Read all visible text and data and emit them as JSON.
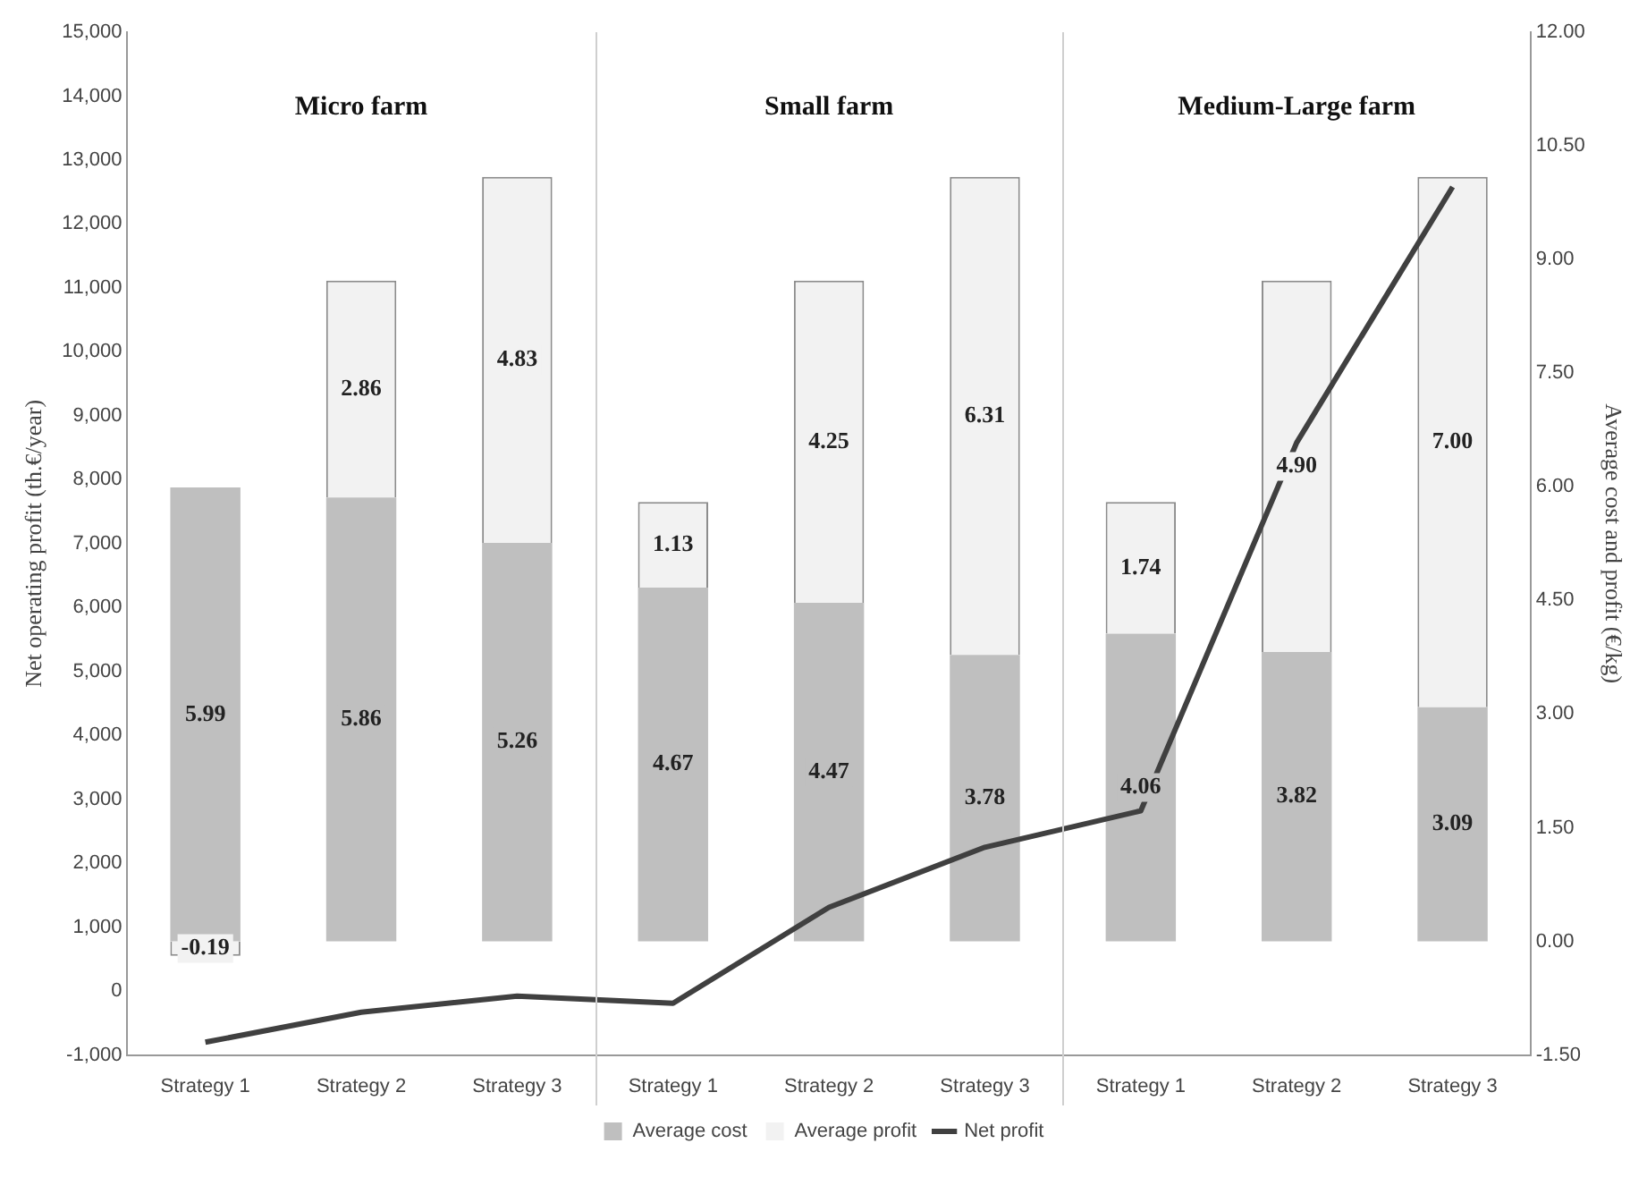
{
  "chart_data": {
    "type": "bar",
    "stacked": true,
    "ylabel": "Net operating profit (th.€/year)",
    "y2label": "Average cost and profit (€/kg)",
    "categories": [
      "Strategy 1",
      "Strategy 2",
      "Strategy 3",
      "Strategy 1",
      "Strategy 2",
      "Strategy 3",
      "Strategy 1",
      "Strategy 2",
      "Strategy 3"
    ],
    "series": [
      {
        "name": "Average cost",
        "axis": "y2",
        "color": "#bfbfbf",
        "values": [
          5.99,
          5.86,
          5.26,
          4.67,
          4.47,
          3.78,
          4.06,
          3.82,
          3.09
        ],
        "value_labels": [
          "5.99",
          "5.86",
          "5.26",
          "4.67",
          "4.47",
          "3.78",
          "4.06",
          "3.82",
          "3.09"
        ]
      },
      {
        "name": "Average profit",
        "axis": "y2",
        "color": "#f2f2f2",
        "values": [
          -0.19,
          2.86,
          4.83,
          1.13,
          4.25,
          6.31,
          1.74,
          4.9,
          7.0
        ],
        "value_labels": [
          "-0.19",
          "2.86",
          "4.83",
          "1.13",
          "4.25",
          "6.31",
          "1.74",
          "4.90",
          "7.00"
        ]
      },
      {
        "name": "Net profit",
        "type": "line",
        "axis": "y",
        "color": "#404040",
        "values": [
          -800,
          -330,
          -80,
          -190,
          1310,
          2250,
          2820,
          8580,
          12580
        ]
      }
    ],
    "ylim": [
      -1000,
      15000
    ],
    "yticks": [
      {
        "value": -1000,
        "label": "-1,000"
      },
      0,
      {
        "value": 1000,
        "label": "1,000"
      },
      {
        "value": 2000,
        "label": "2,000"
      },
      {
        "value": 3000,
        "label": "3,000"
      },
      {
        "value": 4000,
        "label": "4,000"
      },
      {
        "value": 5000,
        "label": "5,000"
      },
      {
        "value": 6000,
        "label": "6,000"
      },
      {
        "value": 7000,
        "label": "7,000"
      },
      {
        "value": 8000,
        "label": "8,000"
      },
      {
        "value": 9000,
        "label": "9,000"
      },
      {
        "value": 10000,
        "label": "10,000"
      },
      {
        "value": 11000,
        "label": "11,000"
      },
      {
        "value": 12000,
        "label": "12,000"
      },
      {
        "value": 13000,
        "label": "13,000"
      },
      {
        "value": 14000,
        "label": "14,000"
      },
      {
        "value": 15000,
        "label": "15,000"
      }
    ],
    "y2lim": [
      -1.5,
      12
    ],
    "y2ticks": [
      {
        "value": -1.5,
        "label": "-1.50"
      },
      {
        "value": 0,
        "label": "0.00"
      },
      {
        "value": 1.5,
        "label": "1.50"
      },
      {
        "value": 3,
        "label": "3.00"
      },
      {
        "value": 4.5,
        "label": "4.50"
      },
      {
        "value": 6,
        "label": "6.00"
      },
      {
        "value": 7.5,
        "label": "7.50"
      },
      {
        "value": 9,
        "label": "9.00"
      },
      {
        "value": 10.5,
        "label": "10.50"
      },
      {
        "value": 12,
        "label": "12.00"
      }
    ],
    "annotations": [
      "Micro farm",
      "Small farm",
      "Medium-Large farm"
    ],
    "legend": "bottom",
    "marker": "none",
    "line_style": "solid"
  }
}
